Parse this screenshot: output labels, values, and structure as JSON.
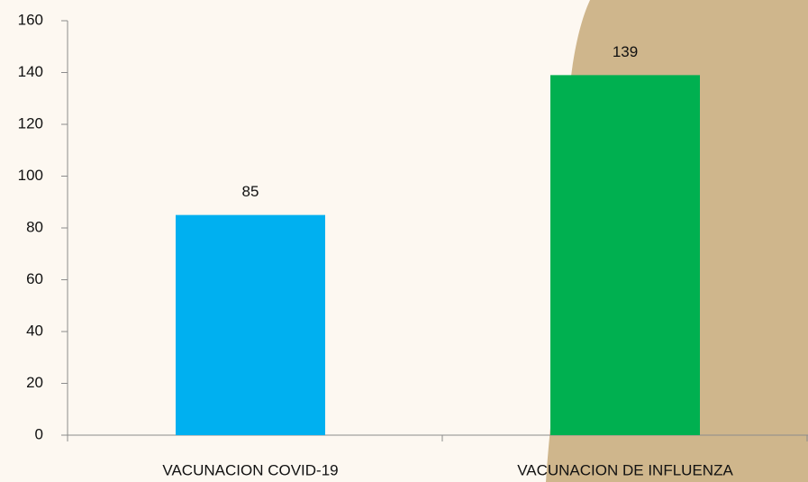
{
  "chart_data": {
    "type": "bar",
    "categories": [
      "VACUNACION COVID-19",
      "VACUNACION DE INFLUENZA"
    ],
    "values": [
      85,
      139
    ],
    "colors": [
      "#00b0f0",
      "#00b050"
    ],
    "ylim": [
      0,
      160
    ],
    "yticks": [
      0,
      20,
      40,
      60,
      80,
      100,
      120,
      140,
      160
    ],
    "grid": false
  }
}
